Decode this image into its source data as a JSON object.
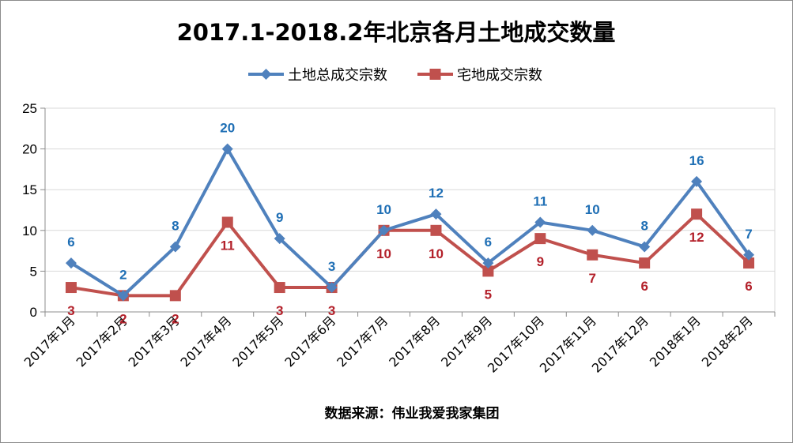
{
  "chart_data": {
    "type": "line",
    "title": "2017.1-2018.2年北京各月土地成交数量",
    "categories": [
      "2017年1月",
      "2017年2月",
      "2017年3月",
      "2017年4月",
      "2017年5月",
      "2017年6月",
      "2017年7月",
      "2017年8月",
      "2017年9月",
      "2017年10月",
      "2017年11月",
      "2017年12月",
      "2018年1月",
      "2018年2月"
    ],
    "series": [
      {
        "name": "土地总成交宗数",
        "color": "#4f81bd",
        "label_color": "#1f6fb5",
        "marker": "diamond",
        "label_position": "above",
        "values": [
          6,
          2,
          8,
          20,
          9,
          3,
          10,
          12,
          6,
          11,
          10,
          8,
          16,
          7
        ]
      },
      {
        "name": "宅地成交宗数",
        "color": "#c0504d",
        "label_color": "#b3202a",
        "marker": "square",
        "label_position": "below",
        "values": [
          3,
          2,
          2,
          11,
          3,
          3,
          10,
          10,
          5,
          9,
          7,
          6,
          12,
          6
        ]
      }
    ],
    "yticks": [
      "0",
      "5",
      "10",
      "15",
      "20",
      "25"
    ],
    "ylim": [
      0,
      25
    ],
    "grid": true,
    "legend_position": "top"
  },
  "footer": {
    "source": "数据来源：伟业我爱我家集团"
  }
}
